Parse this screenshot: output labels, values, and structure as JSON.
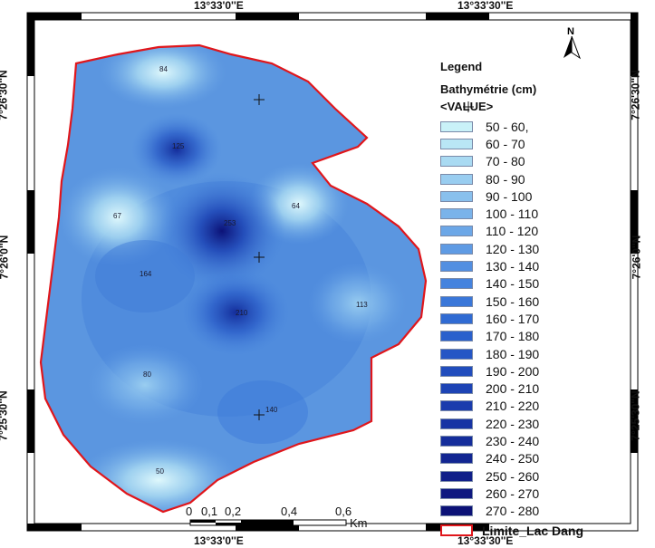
{
  "coordinates": {
    "top_left": "13°33'0''E",
    "top_right": "13°33'30''E",
    "bottom_left": "13°33'0''E",
    "bottom_right": "13°33'30''E",
    "lat_top": "7°26'30''N",
    "lat_mid": "7°26'0''N",
    "lat_bottom": "7°25'30''N"
  },
  "north_arrow": {
    "label": "N",
    "icon": "north-arrow-icon"
  },
  "legend": {
    "title": "Legend",
    "subtitle": "Bathymétrie (cm)",
    "value_label": "<VALUE>",
    "classes": [
      {
        "label": "50 - 60,",
        "color": "#c9f1f8"
      },
      {
        "label": "60 - 70",
        "color": "#b9e6f5"
      },
      {
        "label": "70 - 80",
        "color": "#a9daf2"
      },
      {
        "label": "80 - 90",
        "color": "#99cdf0"
      },
      {
        "label": "90 - 100",
        "color": "#89c0ed"
      },
      {
        "label": "100 - 110",
        "color": "#7ab3ea"
      },
      {
        "label": "110 - 120",
        "color": "#6ca7e7"
      },
      {
        "label": "120 - 130",
        "color": "#5f9be4"
      },
      {
        "label": "130 - 140",
        "color": "#528fe1"
      },
      {
        "label": "140 - 150",
        "color": "#4583de"
      },
      {
        "label": "150 - 160",
        "color": "#3a77d9"
      },
      {
        "label": "160 - 170",
        "color": "#306bd3"
      },
      {
        "label": "170 - 180",
        "color": "#2a60cc"
      },
      {
        "label": "180 - 190",
        "color": "#2556c5"
      },
      {
        "label": "190 - 200",
        "color": "#214dbd"
      },
      {
        "label": "200 - 210",
        "color": "#1d44b5"
      },
      {
        "label": "210 - 220",
        "color": "#1a3cad"
      },
      {
        "label": "220 - 230",
        "color": "#1734a4"
      },
      {
        "label": "230 - 240",
        "color": "#142d9b"
      },
      {
        "label": "240 - 250",
        "color": "#122692"
      },
      {
        "label": "250 - 260",
        "color": "#101f89"
      },
      {
        "label": "260 - 270",
        "color": "#0e1880"
      },
      {
        "label": "270 - 280",
        "color": "#0c1277"
      }
    ],
    "boundary_label": "Limite_Lac Dang",
    "boundary_color": "#e0161b"
  },
  "depth_points": [
    "84",
    "125",
    "67",
    "64",
    "253",
    "164",
    "210",
    "113",
    "80",
    "140",
    "50"
  ],
  "scale_bar": {
    "ticks": [
      "0",
      "0,1",
      "0,2",
      "0,4",
      "0,6"
    ],
    "unit": "Km"
  }
}
